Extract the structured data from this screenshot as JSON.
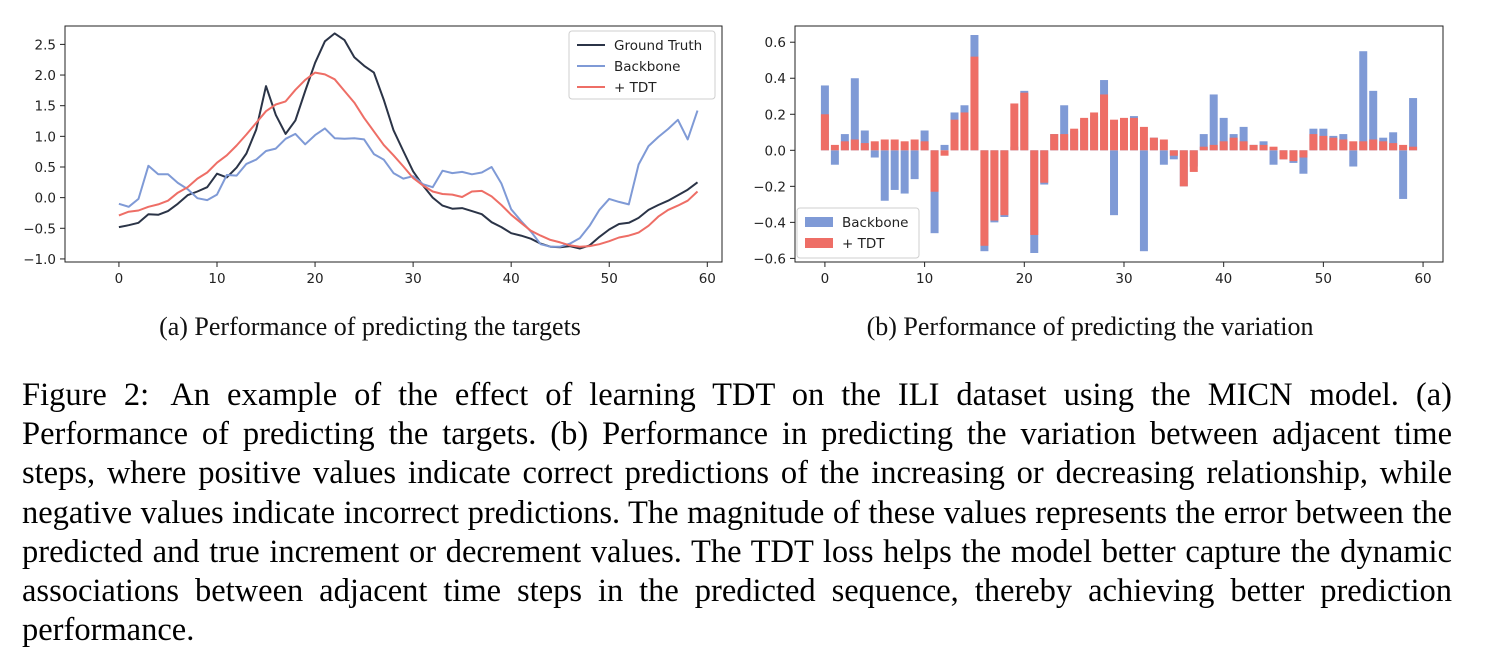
{
  "chart_data": [
    {
      "type": "line",
      "panel": "a",
      "caption": "(a) Performance of predicting the targets",
      "x": [
        0,
        1,
        2,
        3,
        4,
        5,
        6,
        7,
        8,
        9,
        10,
        11,
        12,
        13,
        14,
        15,
        16,
        17,
        18,
        19,
        20,
        21,
        22,
        23,
        24,
        25,
        26,
        27,
        28,
        29,
        30,
        31,
        32,
        33,
        34,
        35,
        36,
        37,
        38,
        39,
        40,
        41,
        42,
        43,
        44,
        45,
        46,
        47,
        48,
        49,
        50,
        51,
        52,
        53,
        54,
        55,
        56,
        57,
        58,
        59
      ],
      "xlim": [
        -5.5,
        61.5
      ],
      "ylim": [
        -1.05,
        2.8
      ],
      "xticks": [
        0,
        10,
        20,
        30,
        40,
        50,
        60
      ],
      "yticks": [
        -1.0,
        -0.5,
        0.0,
        0.5,
        1.0,
        1.5,
        2.0,
        2.5
      ],
      "ytick_labels": [
        "−1.0",
        "−0.5",
        "0.0",
        "0.5",
        "1.0",
        "1.5",
        "2.0",
        "2.5"
      ],
      "legend_position": "top-right",
      "series": [
        {
          "name": "Ground Truth",
          "color": "#2b3447",
          "values": [
            -0.48,
            -0.45,
            -0.41,
            -0.27,
            -0.28,
            -0.22,
            -0.1,
            0.04,
            0.1,
            0.17,
            0.39,
            0.33,
            0.49,
            0.72,
            1.11,
            1.82,
            1.35,
            1.04,
            1.26,
            1.74,
            2.2,
            2.55,
            2.68,
            2.57,
            2.29,
            2.15,
            2.04,
            1.6,
            1.1,
            0.76,
            0.43,
            0.2,
            0.0,
            -0.13,
            -0.18,
            -0.17,
            -0.22,
            -0.27,
            -0.4,
            -0.48,
            -0.58,
            -0.62,
            -0.67,
            -0.75,
            -0.8,
            -0.81,
            -0.79,
            -0.83,
            -0.78,
            -0.64,
            -0.52,
            -0.43,
            -0.41,
            -0.33,
            -0.2,
            -0.12,
            -0.05,
            0.04,
            0.13,
            0.25
          ]
        },
        {
          "name": "Backbone",
          "color": "#7f9ad6",
          "values": [
            -0.1,
            -0.15,
            -0.02,
            0.52,
            0.38,
            0.38,
            0.24,
            0.14,
            -0.01,
            -0.04,
            0.05,
            0.37,
            0.36,
            0.55,
            0.62,
            0.76,
            0.8,
            0.96,
            1.04,
            0.87,
            1.02,
            1.13,
            0.97,
            0.96,
            0.97,
            0.95,
            0.71,
            0.62,
            0.4,
            0.31,
            0.35,
            0.22,
            0.17,
            0.44,
            0.4,
            0.42,
            0.38,
            0.41,
            0.5,
            0.23,
            -0.19,
            -0.38,
            -0.55,
            -0.76,
            -0.8,
            -0.8,
            -0.75,
            -0.66,
            -0.46,
            -0.2,
            -0.02,
            -0.07,
            -0.11,
            0.54,
            0.84,
            0.99,
            1.12,
            1.27,
            0.95,
            1.42
          ]
        },
        {
          "name": "+ TDT",
          "color": "#ee6e66",
          "values": [
            -0.29,
            -0.23,
            -0.21,
            -0.15,
            -0.11,
            -0.05,
            0.08,
            0.17,
            0.31,
            0.41,
            0.57,
            0.69,
            0.85,
            1.03,
            1.22,
            1.41,
            1.52,
            1.57,
            1.76,
            1.92,
            2.04,
            2.01,
            1.93,
            1.74,
            1.55,
            1.3,
            1.08,
            0.86,
            0.69,
            0.51,
            0.32,
            0.2,
            0.1,
            0.06,
            0.05,
            0.01,
            0.1,
            0.11,
            0.02,
            -0.12,
            -0.28,
            -0.41,
            -0.54,
            -0.62,
            -0.69,
            -0.73,
            -0.78,
            -0.8,
            -0.79,
            -0.76,
            -0.71,
            -0.65,
            -0.62,
            -0.57,
            -0.46,
            -0.31,
            -0.2,
            -0.13,
            -0.05,
            0.1
          ]
        }
      ]
    },
    {
      "type": "bar",
      "panel": "b",
      "caption": "(b) Performance of predicting the variation",
      "x": [
        0,
        1,
        2,
        3,
        4,
        5,
        6,
        7,
        8,
        9,
        10,
        11,
        12,
        13,
        14,
        15,
        16,
        17,
        18,
        19,
        20,
        21,
        22,
        23,
        24,
        25,
        26,
        27,
        28,
        29,
        30,
        31,
        32,
        33,
        34,
        35,
        36,
        37,
        38,
        39,
        40,
        41,
        42,
        43,
        44,
        45,
        46,
        47,
        48,
        49,
        50,
        51,
        52,
        53,
        54,
        55,
        56,
        57,
        58,
        59
      ],
      "xlim": [
        -3.0,
        62.0
      ],
      "ylim": [
        -0.62,
        0.69
      ],
      "xticks": [
        0,
        10,
        20,
        30,
        40,
        50,
        60
      ],
      "yticks": [
        -0.6,
        -0.4,
        -0.2,
        0.0,
        0.2,
        0.4,
        0.6
      ],
      "ytick_labels": [
        "−0.6",
        "−0.4",
        "−0.2",
        "0.0",
        "0.2",
        "0.4",
        "0.6"
      ],
      "legend_position": "bottom-left",
      "series": [
        {
          "name": "Backbone",
          "color": "#7f9ad6",
          "values": [
            0.36,
            -0.08,
            0.09,
            0.4,
            0.11,
            -0.04,
            -0.28,
            -0.22,
            -0.24,
            -0.16,
            0.11,
            -0.46,
            0.03,
            0.21,
            0.25,
            0.64,
            -0.56,
            -0.4,
            -0.37,
            0.02,
            0.33,
            -0.57,
            -0.19,
            0.09,
            0.25,
            0.11,
            0.17,
            0.19,
            0.39,
            -0.36,
            0.09,
            0.19,
            -0.56,
            0.07,
            -0.08,
            -0.05,
            -0.2,
            -0.09,
            0.09,
            0.31,
            0.18,
            0.09,
            0.13,
            0.03,
            0.05,
            -0.08,
            -0.05,
            -0.07,
            -0.13,
            0.12,
            0.12,
            0.08,
            0.09,
            -0.09,
            0.55,
            0.33,
            0.07,
            0.1,
            -0.27,
            0.29
          ]
        },
        {
          "name": "+ TDT",
          "color": "#ee6e66",
          "values": [
            0.2,
            0.03,
            0.05,
            0.06,
            0.04,
            0.05,
            0.06,
            0.06,
            0.05,
            0.06,
            0.05,
            -0.23,
            -0.03,
            0.17,
            0.21,
            0.52,
            -0.53,
            -0.39,
            -0.36,
            0.26,
            0.32,
            -0.47,
            -0.18,
            0.09,
            0.09,
            0.12,
            0.18,
            0.21,
            0.31,
            0.17,
            0.18,
            0.18,
            0.13,
            0.07,
            0.06,
            -0.03,
            -0.2,
            -0.12,
            0.02,
            0.03,
            0.05,
            0.07,
            0.05,
            0.03,
            0.03,
            0.02,
            -0.05,
            -0.06,
            -0.04,
            0.09,
            0.08,
            0.07,
            0.06,
            0.05,
            0.05,
            0.06,
            0.05,
            0.04,
            0.03,
            0.02
          ]
        }
      ]
    }
  ],
  "captions": {
    "sub_a": "(a) Performance of predicting the targets",
    "sub_b": "(b) Performance of predicting the variation",
    "figure_number": "Figure 2:",
    "figure_text": "An example of the effect of learning TDT on the ILI dataset using the MICN model. (a) Performance of predicting the targets.  (b) Performance in predicting the variation between adjacent time steps, where positive values indicate correct predictions of the increasing or decreasing relationship, while negative values indicate incorrect predictions. The magnitude of these values represents the error between the predicted and true increment or decrement values. The TDT loss helps the model better capture the dynamic associations between adjacent time steps in the predicted sequence, thereby achieving better prediction performance."
  }
}
